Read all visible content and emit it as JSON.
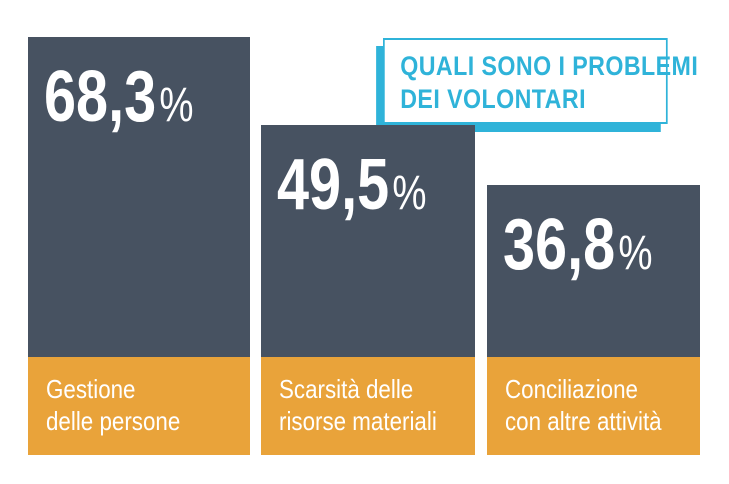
{
  "title_lines": [
    "QUALI SONO I PROBLEMI",
    "DEI VOLONTARI"
  ],
  "colors": {
    "bar": "#475261",
    "label_bg": "#e9a33a",
    "accent": "#2fb3d9",
    "text": "#ffffff"
  },
  "chart_data": {
    "type": "bar",
    "title": "QUALI SONO I PROBLEMI DEI VOLONTARI",
    "categories": [
      "Gestione delle persone",
      "Scarsità delle risorse materiali",
      "Conciliazione con altre attività"
    ],
    "values": [
      68.3,
      49.5,
      36.8
    ],
    "value_labels": [
      "68,3",
      "49,5",
      "36,8"
    ],
    "unit": "%",
    "category_lines": [
      [
        "Gestione",
        "delle persone"
      ],
      [
        "Scarsità delle",
        "risorse materiali"
      ],
      [
        "Conciliazione",
        "con altre attività"
      ]
    ],
    "ylim": [
      0,
      68.3
    ],
    "grid": false
  }
}
